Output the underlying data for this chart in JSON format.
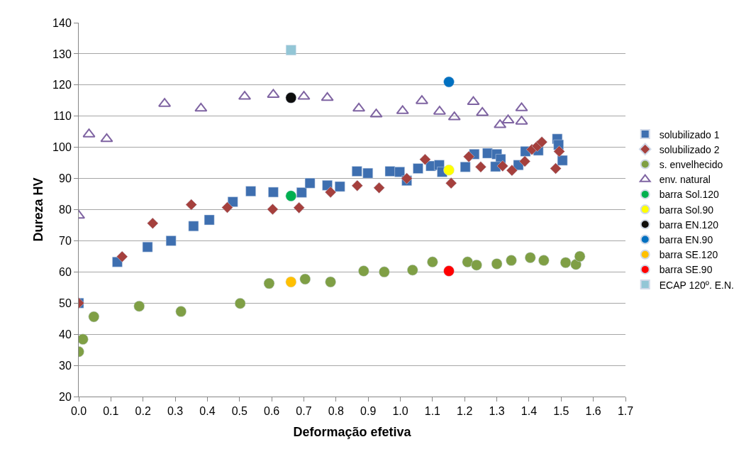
{
  "chart_data": {
    "type": "scatter",
    "xlabel": "Deformação efetiva",
    "ylabel": "Dureza HV",
    "xlim": [
      0,
      1.7
    ],
    "xticks": [
      {
        "value": 0,
        "label": "0.0"
      },
      0.1,
      0.2,
      0.3,
      0.4,
      0.5,
      0.6,
      0.7,
      0.8,
      0.9,
      {
        "value": 1,
        "label": "1.0"
      },
      1.1,
      1.2,
      1.3,
      1.4,
      1.5,
      1.6,
      1.7
    ],
    "ylim": [
      20,
      140
    ],
    "yticks": [
      20,
      30,
      40,
      50,
      60,
      70,
      80,
      90,
      100,
      110,
      120,
      130,
      140
    ],
    "grid": "y",
    "legend": "right",
    "series": [
      {
        "name": "solubilizado 1",
        "color": "#3e6fb0",
        "marker": "square",
        "x": [
          0,
          0.12,
          0.214,
          0.287,
          0.357,
          0.406,
          0.479,
          0.535,
          0.605,
          0.693,
          0.719,
          0.773,
          0.812,
          0.865,
          0.899,
          0.968,
          0.998,
          1.02,
          1.055,
          1.095,
          1.121,
          1.13,
          1.202,
          1.23,
          1.271,
          1.3,
          1.312,
          1.296,
          1.367,
          1.389,
          1.429,
          1.488,
          1.492,
          1.504
        ],
        "values": [
          50,
          63.2,
          68,
          70,
          74.7,
          76.7,
          82.5,
          85.9,
          85.6,
          85.5,
          88.5,
          87.8,
          87.4,
          92.3,
          91.7,
          92.3,
          92.1,
          89.3,
          93.2,
          94,
          94.3,
          92.1,
          93.7,
          97.8,
          98.1,
          97.8,
          96.2,
          93.8,
          94.3,
          98.7,
          99,
          102.7,
          100.8,
          95.8
        ]
      },
      {
        "name": "solubilizado 2",
        "color": "#a5403d",
        "marker": "diamond",
        "x": [
          0,
          0.135,
          0.23,
          0.35,
          0.462,
          0.603,
          0.685,
          0.783,
          0.866,
          0.934,
          1.02,
          1.077,
          1.158,
          1.213,
          1.25,
          1.318,
          1.347,
          1.387,
          1.409,
          1.426,
          1.44,
          1.494,
          1.483
        ],
        "values": [
          50,
          64.9,
          75.6,
          81.6,
          80.7,
          80.1,
          80.6,
          85.6,
          87.7,
          87,
          90,
          96.1,
          88.5,
          97,
          93.7,
          94,
          92.6,
          95.5,
          99.3,
          100.4,
          101.7,
          98.7,
          93.2
        ]
      },
      {
        "name": "s. envelhecido",
        "color": "#7f9f45",
        "marker": "circle",
        "x": [
          0,
          0.013,
          0.047,
          0.188,
          0.318,
          0.502,
          0.592,
          0.704,
          0.783,
          0.886,
          0.95,
          1.038,
          1.1,
          1.209,
          1.237,
          1.3,
          1.345,
          1.404,
          1.446,
          1.514,
          1.546,
          1.558
        ],
        "values": [
          34.4,
          38.4,
          45.6,
          49,
          47.3,
          49.9,
          56.3,
          57.7,
          56.8,
          60.3,
          60,
          60.6,
          63.2,
          63.2,
          62.2,
          62.6,
          63.7,
          64.6,
          63.7,
          63,
          62.4,
          65
        ]
      },
      {
        "name": "env. natural",
        "color": "#7f64a2",
        "marker": "triangle",
        "x": [
          0,
          0.032,
          0.087,
          0.267,
          0.38,
          0.516,
          0.605,
          0.7,
          0.773,
          0.871,
          0.925,
          1.007,
          1.067,
          1.122,
          1.168,
          1.227,
          1.255,
          1.31,
          1.335,
          1.377,
          1.377
        ],
        "values": [
          78.1,
          104.2,
          102.7,
          114,
          112.5,
          116.3,
          116.9,
          116.3,
          115.9,
          112.5,
          110.6,
          111.7,
          114.9,
          111.5,
          109.7,
          114.6,
          111.1,
          107.2,
          108.7,
          112.6,
          108.3
        ]
      },
      {
        "name": "barra Sol.120",
        "color": "#00b050",
        "marker": "circle",
        "x": [
          0.66
        ],
        "values": [
          84.4
        ]
      },
      {
        "name": "barra Sol.90",
        "color": "#ffff00",
        "marker": "circle",
        "x": [
          1.151
        ],
        "values": [
          92.7
        ]
      },
      {
        "name": "barra EN.120",
        "color": "#0d0d0d",
        "marker": "circle",
        "x": [
          0.66
        ],
        "values": [
          115.9
        ]
      },
      {
        "name": "barra EN.90",
        "color": "#0070c0",
        "marker": "circle",
        "x": [
          1.151
        ],
        "values": [
          121
        ]
      },
      {
        "name": "barra SE.120",
        "color": "#ffc000",
        "marker": "circle",
        "x": [
          0.66
        ],
        "values": [
          56.8
        ]
      },
      {
        "name": "barra SE.90",
        "color": "#ff0000",
        "marker": "circle",
        "x": [
          1.151
        ],
        "values": [
          60.3
        ]
      },
      {
        "name": "ECAP 120º. E.N.",
        "color": "#93c6d6",
        "marker": "square",
        "x": [
          0.66
        ],
        "values": [
          131.2
        ]
      }
    ]
  }
}
